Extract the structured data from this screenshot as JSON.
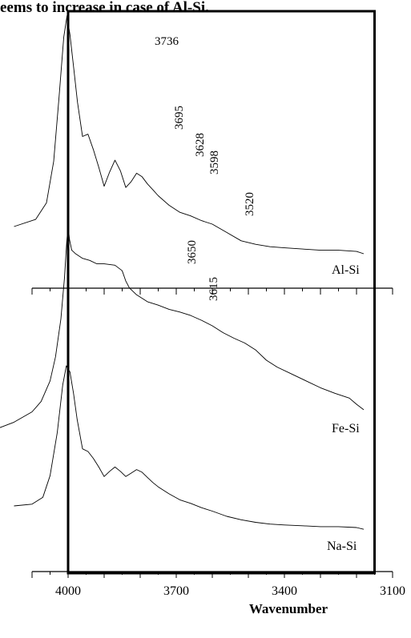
{
  "page_text": {
    "top_line": "eems to increase in case of Al-Si."
  },
  "chart_data": {
    "type": "line",
    "title": "",
    "xlabel": "Wavenumber",
    "ylabel": "",
    "xlim": [
      4100,
      3100
    ],
    "x_reversed": true,
    "x_ticks": [
      4000,
      3700,
      3400,
      3100
    ],
    "y_units": "arbitrary (stacked spectra)",
    "frame": {
      "show": true,
      "x_range": [
        4000,
        3150
      ]
    },
    "series": [
      {
        "name": "Al-Si",
        "x": [
          4150,
          4090,
          4060,
          4040,
          4025,
          4012,
          4003,
          3995,
          3985,
          3974,
          3960,
          3945,
          3930,
          3915,
          3900,
          3885,
          3870,
          3855,
          3840,
          3825,
          3810,
          3795,
          3780,
          3765,
          3750,
          3720,
          3690,
          3660,
          3630,
          3600,
          3560,
          3520,
          3480,
          3440,
          3400,
          3350,
          3300,
          3250,
          3200,
          3180
        ],
        "y": [
          0.0,
          0.06,
          0.2,
          0.55,
          1.1,
          1.6,
          1.78,
          1.62,
          1.35,
          1.05,
          0.76,
          0.78,
          0.65,
          0.5,
          0.34,
          0.46,
          0.56,
          0.47,
          0.33,
          0.38,
          0.45,
          0.42,
          0.36,
          0.31,
          0.26,
          0.18,
          0.12,
          0.09,
          0.05,
          0.02,
          -0.05,
          -0.12,
          -0.15,
          -0.17,
          -0.18,
          -0.19,
          -0.2,
          -0.2,
          -0.21,
          -0.23
        ]
      },
      {
        "name": "Fe-Si",
        "x": [
          4200,
          4150,
          4100,
          4075,
          4050,
          4035,
          4020,
          4010,
          4004,
          4000,
          3996,
          3990,
          3980,
          3960,
          3940,
          3920,
          3900,
          3870,
          3850,
          3840,
          3830,
          3810,
          3780,
          3750,
          3720,
          3690,
          3660,
          3630,
          3600,
          3570,
          3540,
          3510,
          3480,
          3450,
          3420,
          3380,
          3340,
          3300,
          3260,
          3220,
          3200,
          3180
        ],
        "y": [
          0.0,
          0.1,
          0.25,
          0.4,
          0.7,
          1.05,
          1.6,
          2.2,
          2.7,
          2.95,
          2.75,
          2.6,
          2.55,
          2.48,
          2.45,
          2.4,
          2.4,
          2.38,
          2.3,
          2.15,
          2.05,
          1.95,
          1.85,
          1.8,
          1.74,
          1.7,
          1.65,
          1.58,
          1.5,
          1.4,
          1.32,
          1.25,
          1.15,
          1.0,
          0.9,
          0.8,
          0.7,
          0.6,
          0.52,
          0.45,
          0.36,
          0.28
        ]
      },
      {
        "name": "Na-Si",
        "x": [
          4150,
          4100,
          4070,
          4050,
          4030,
          4015,
          4005,
          3995,
          3985,
          3975,
          3960,
          3945,
          3930,
          3915,
          3900,
          3885,
          3870,
          3855,
          3840,
          3825,
          3810,
          3795,
          3780,
          3765,
          3750,
          3720,
          3690,
          3660,
          3630,
          3600,
          3560,
          3520,
          3480,
          3440,
          3400,
          3350,
          3300,
          3250,
          3200,
          3180
        ],
        "y": [
          0.0,
          0.02,
          0.1,
          0.35,
          0.85,
          1.4,
          1.62,
          1.55,
          1.3,
          1.0,
          0.66,
          0.63,
          0.55,
          0.45,
          0.34,
          0.4,
          0.45,
          0.4,
          0.34,
          0.38,
          0.42,
          0.39,
          0.33,
          0.27,
          0.22,
          0.14,
          0.07,
          0.03,
          -0.02,
          -0.06,
          -0.12,
          -0.16,
          -0.19,
          -0.21,
          -0.22,
          -0.23,
          -0.24,
          -0.24,
          -0.25,
          -0.27
        ]
      }
    ],
    "annotations": [
      {
        "text": "3736",
        "orientation": "horizontal"
      },
      {
        "text": "3695",
        "orientation": "vertical"
      },
      {
        "text": "3628",
        "orientation": "vertical"
      },
      {
        "text": "3598",
        "orientation": "vertical"
      },
      {
        "text": "3520",
        "orientation": "vertical"
      },
      {
        "text": "3650",
        "orientation": "vertical"
      },
      {
        "text": "3615",
        "orientation": "vertical"
      }
    ],
    "series_labels": [
      "Al-Si",
      "Fe-Si",
      "Na-Si"
    ],
    "axes": [
      {
        "name": "upper-axis",
        "x_range": [
          4100,
          3100
        ]
      },
      {
        "name": "lower-axis",
        "x_range": [
          4100,
          3100
        ]
      }
    ]
  }
}
